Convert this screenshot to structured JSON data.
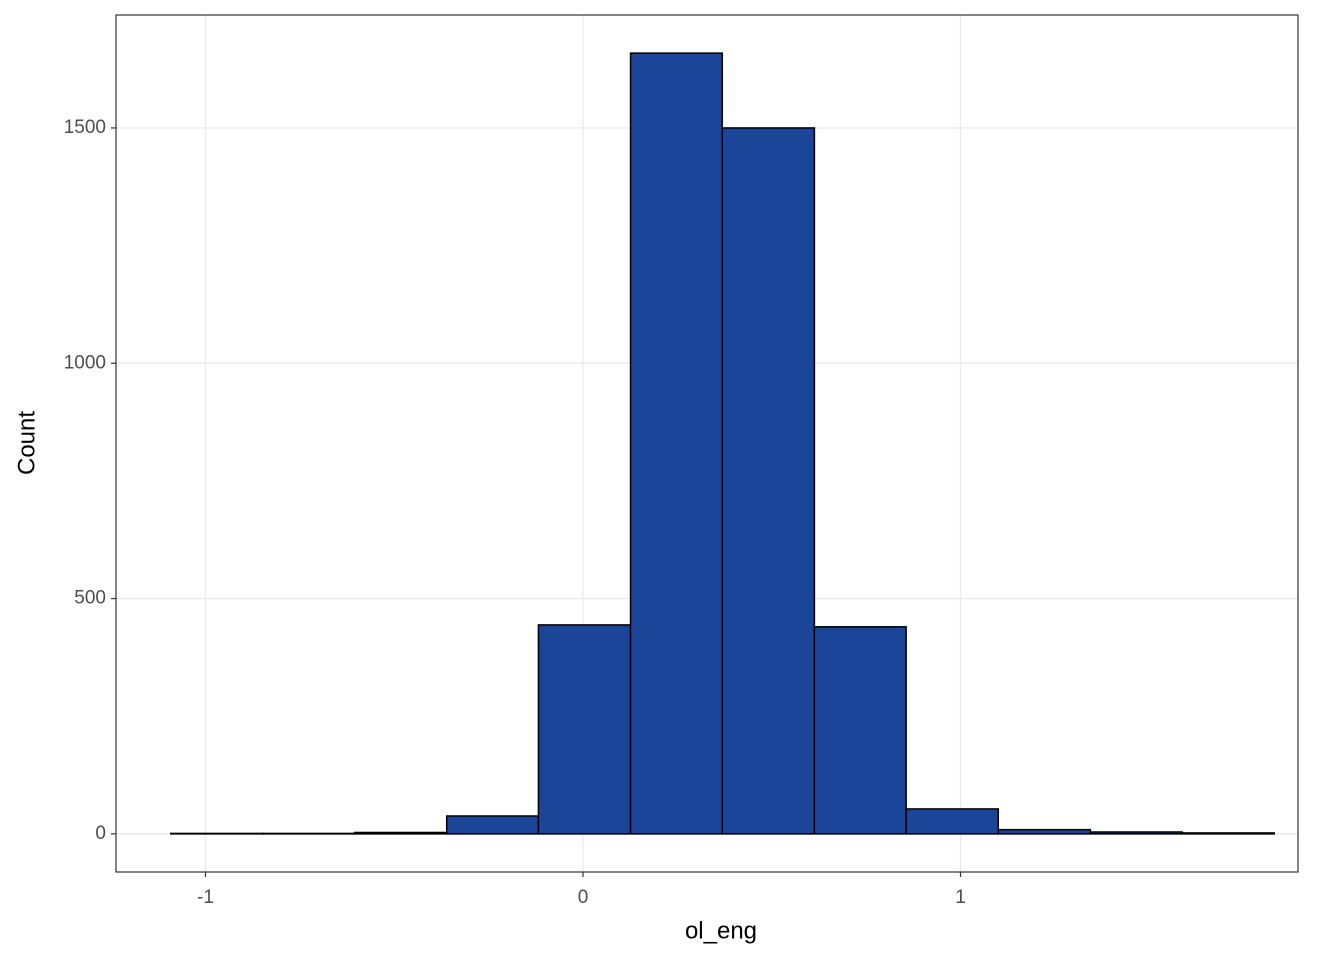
{
  "chart_data": {
    "type": "histogram",
    "x_label": "ol_eng",
    "y_label": "Count",
    "bins": [
      -1.092,
      -0.848,
      -0.605,
      -0.361,
      -0.118,
      0.126,
      0.369,
      0.613,
      0.856,
      1.1,
      1.344,
      1.587,
      1.831
    ],
    "values": [
      1,
      1,
      3,
      38,
      444,
      1659,
      1500,
      440,
      53,
      9,
      4,
      2
    ],
    "color": "#1a4599",
    "edge_color": "#000000",
    "xlim": [
      -1.237,
      1.894
    ],
    "ylim": [
      -81,
      1740
    ],
    "xticks": [
      -1,
      0,
      1
    ],
    "yticks": [
      0,
      500,
      1000,
      1500
    ],
    "grid": true
  }
}
